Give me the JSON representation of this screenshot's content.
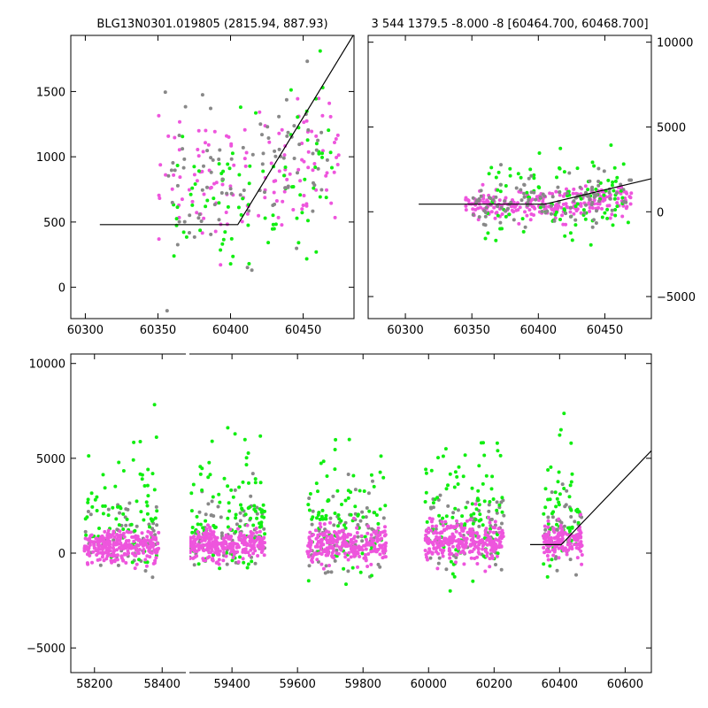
{
  "chart_data": [
    {
      "id": "top-left",
      "type": "scatter",
      "title": "BLG13N0301.019805 (2815.94, 887.93)",
      "xlim": [
        60290,
        60485
      ],
      "ylim": [
        -240,
        1930
      ],
      "x_ticks": [
        60300,
        60350,
        60400,
        60450
      ],
      "y_ticks": [
        0,
        500,
        1000,
        1500
      ],
      "y_axis_side": "left",
      "model_line": [
        [
          60310,
          480
        ],
        [
          60405,
          480
        ],
        [
          60485,
          1940
        ]
      ],
      "series": [
        {
          "color": "#ee55dd",
          "cluster": {
            "x_range": [
              60350,
              60475
            ],
            "y_center": 780,
            "y_spread": 420,
            "slope": 4.5,
            "n": 130
          }
        },
        {
          "color": "#11ee11",
          "cluster": {
            "x_range": [
              60360,
              60470
            ],
            "y_center": 700,
            "y_spread": 500,
            "slope": 4.0,
            "n": 90
          }
        },
        {
          "color": "#888888",
          "cluster": {
            "x_range": [
              60355,
              60470
            ],
            "y_center": 760,
            "y_spread": 450,
            "slope": 4.2,
            "n": 90
          }
        }
      ]
    },
    {
      "id": "top-right",
      "type": "scatter",
      "title": "3 544 1379.5 -8.000 -8 [60464.700, 60468.700]",
      "xlim": [
        60272,
        60485
      ],
      "ylim": [
        -6300,
        10400
      ],
      "x_ticks": [
        60300,
        60350,
        60400,
        60450
      ],
      "y_ticks": [
        -5000,
        0,
        5000,
        10000
      ],
      "y_axis_side": "right",
      "model_line": [
        [
          60310,
          450
        ],
        [
          60405,
          450
        ],
        [
          60485,
          1950
        ]
      ],
      "series": [
        {
          "color": "#ee55dd",
          "cluster": {
            "x_range": [
              60345,
              60470
            ],
            "y_center": 300,
            "y_spread": 700,
            "slope": 8,
            "n": 260
          }
        },
        {
          "color": "#11ee11",
          "cluster": {
            "x_range": [
              60360,
              60470
            ],
            "y_center": 600,
            "y_spread": 2000,
            "slope": 8,
            "n": 110
          }
        },
        {
          "color": "#888888",
          "cluster": {
            "x_range": [
              60350,
              60470
            ],
            "y_center": 500,
            "y_spread": 1200,
            "slope": 8,
            "n": 110
          }
        }
      ]
    },
    {
      "id": "bottom",
      "type": "scatter",
      "title": "",
      "segments": [
        {
          "xlim": [
            58130,
            58470
          ],
          "x_ticks": [
            58200,
            58400
          ]
        },
        {
          "xlim": [
            59270,
            60680
          ],
          "x_ticks": [
            59400,
            59600,
            59800,
            60000,
            60200,
            60400,
            60600
          ]
        }
      ],
      "ylim": [
        -6300,
        10500
      ],
      "y_ticks": [
        -5000,
        0,
        5000,
        10000
      ],
      "y_axis_side": "left",
      "model_line": [
        [
          60310,
          450
        ],
        [
          60405,
          450
        ],
        [
          60680,
          5400
        ]
      ],
      "seasons": [
        {
          "x_range": [
            58170,
            58390
          ],
          "y_center": 150,
          "y_spread": 650,
          "n_pink": 260,
          "n_green": 80,
          "n_gray": 60
        },
        {
          "x_range": [
            59270,
            59500
          ],
          "y_center": 250,
          "y_spread": 600,
          "n_pink": 280,
          "n_green": 110,
          "n_gray": 70
        },
        {
          "x_range": [
            59630,
            59870
          ],
          "y_center": 250,
          "y_spread": 700,
          "n_pink": 260,
          "n_green": 100,
          "n_gray": 70
        },
        {
          "x_range": [
            59990,
            60230
          ],
          "y_center": 450,
          "y_spread": 800,
          "n_pink": 280,
          "n_green": 100,
          "n_gray": 70
        },
        {
          "x_range": [
            60350,
            60470
          ],
          "y_center": 450,
          "y_spread": 650,
          "n_pink": 150,
          "n_green": 60,
          "n_gray": 40
        }
      ],
      "colors": {
        "pink": "#ee55dd",
        "green": "#11ee11",
        "gray": "#888888"
      }
    }
  ]
}
